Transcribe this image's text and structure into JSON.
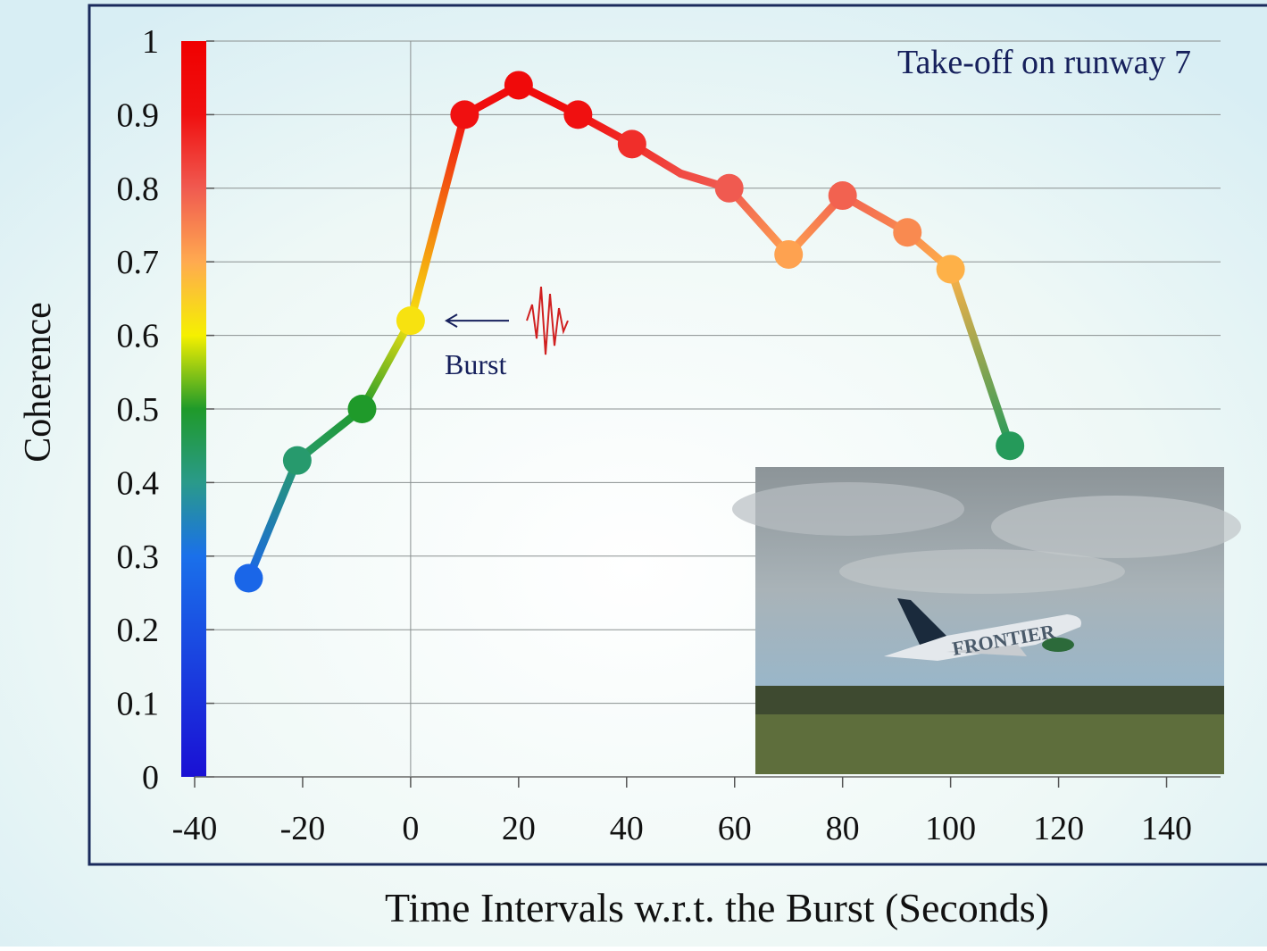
{
  "chart_data": {
    "type": "line",
    "x_label": "Time Intervals w.r.t. the Burst (Seconds)",
    "y_label": "Coherence",
    "annotation": "Take-off on runway 7",
    "burst_label": "Burst",
    "burst_x": 0,
    "inset_text": "FRONTIER",
    "x": [
      -30,
      -21,
      -9,
      0,
      10,
      20,
      31,
      41,
      50,
      59,
      70,
      80,
      92,
      100,
      111
    ],
    "values": [
      0.27,
      0.43,
      0.5,
      0.62,
      0.9,
      0.94,
      0.9,
      0.86,
      0.82,
      0.8,
      0.71,
      0.79,
      0.74,
      0.69,
      0.45
    ],
    "markers": [
      true,
      true,
      true,
      true,
      true,
      true,
      true,
      true,
      null,
      true,
      true,
      true,
      true,
      true,
      true
    ],
    "xlim": [
      -40,
      150
    ],
    "ylim": [
      0,
      1
    ],
    "xticks": [
      -40,
      -20,
      0,
      20,
      40,
      60,
      80,
      100,
      120,
      140
    ],
    "yticks": [
      0,
      0.1,
      0.2,
      0.3,
      0.4,
      0.5,
      0.6,
      0.7,
      0.8,
      0.9,
      1
    ],
    "grid": true,
    "colormap": [
      {
        "value": 0,
        "color": "#1a10d4"
      },
      {
        "value": 0.3,
        "color": "#1a70ea"
      },
      {
        "value": 0.4,
        "color": "#2a9a8a"
      },
      {
        "value": 0.5,
        "color": "#1f9a2a"
      },
      {
        "value": 0.6,
        "color": "#f5f000"
      },
      {
        "value": 0.7,
        "color": "#ffaa50"
      },
      {
        "value": 0.8,
        "color": "#f05a50"
      },
      {
        "value": 0.9,
        "color": "#f01010"
      },
      {
        "value": 1,
        "color": "#f00000"
      }
    ]
  }
}
